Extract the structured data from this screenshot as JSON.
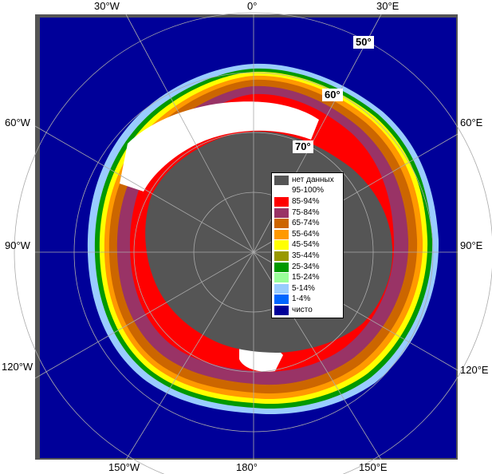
{
  "longitude_labels": {
    "top_30w": "30°W",
    "top_0": "0°",
    "top_30e": "30°E",
    "left_60w": "60°W",
    "left_90w": "90°W",
    "left_120w": "120°W",
    "right_60e": "60°E",
    "right_90e": "90°E",
    "right_120e": "120°E",
    "bottom_150w": "150°W",
    "bottom_180": "180°",
    "bottom_150e": "150°E"
  },
  "latitude_labels": {
    "lat50": "50°",
    "lat60": "60°",
    "lat70": "70°"
  },
  "legend": {
    "items": [
      {
        "label": "нет данных",
        "color": "#555555"
      },
      {
        "label": "95-100%",
        "color": "#ffffff"
      },
      {
        "label": "85-94%",
        "color": "#ff0000"
      },
      {
        "label": "75-84%",
        "color": "#993366"
      },
      {
        "label": "65-74%",
        "color": "#cc6600"
      },
      {
        "label": "55-64%",
        "color": "#ff9900"
      },
      {
        "label": "45-54%",
        "color": "#ffff00"
      },
      {
        "label": "35-44%",
        "color": "#999900"
      },
      {
        "label": "25-34%",
        "color": "#009900"
      },
      {
        "label": "15-24%",
        "color": "#99ff99"
      },
      {
        "label": "5-14%",
        "color": "#99ccff"
      },
      {
        "label": "1-4%",
        "color": "#0066ff"
      },
      {
        "label": "чисто",
        "color": "#000099"
      }
    ]
  },
  "colors": {
    "ocean": "#000099",
    "land": "#555555",
    "frame": "#555555",
    "grid": "#aaaaaa"
  }
}
